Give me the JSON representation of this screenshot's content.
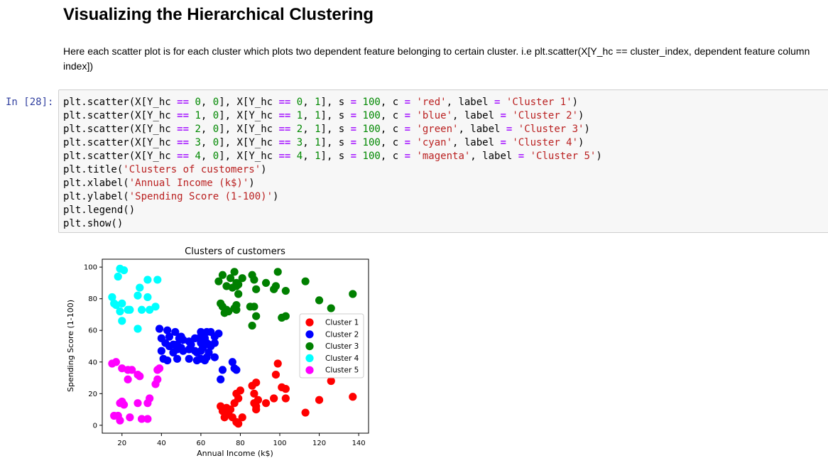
{
  "markdown": {
    "heading": "Visualizing the Hierarchical Clustering",
    "paragraph": "Here each scatter plot is for each cluster which plots two dependent feature belonging to certain cluster. i.e plt.scatter(X[Y_hc == cluster_index, dependent feature column index])"
  },
  "cell": {
    "prompt": "In [28]:",
    "code_lines": [
      [
        [
          "plt.scatter(X[Y_hc ",
          ""
        ],
        [
          "==",
          "op"
        ],
        [
          " ",
          ""
        ],
        [
          "0",
          "num"
        ],
        [
          ", ",
          ""
        ],
        [
          "0",
          "num"
        ],
        [
          "], X[Y_hc ",
          ""
        ],
        [
          "==",
          "op"
        ],
        [
          " ",
          ""
        ],
        [
          "0",
          "num"
        ],
        [
          ", ",
          ""
        ],
        [
          "1",
          "num"
        ],
        [
          "], s ",
          ""
        ],
        [
          "=",
          "op"
        ],
        [
          " ",
          ""
        ],
        [
          "100",
          "num"
        ],
        [
          ", c ",
          ""
        ],
        [
          "=",
          "op"
        ],
        [
          " ",
          ""
        ],
        [
          "'red'",
          "str"
        ],
        [
          ", label ",
          ""
        ],
        [
          "=",
          "op"
        ],
        [
          " ",
          ""
        ],
        [
          "'Cluster 1'",
          "str"
        ],
        [
          ")",
          ""
        ]
      ],
      [
        [
          "plt.scatter(X[Y_hc ",
          ""
        ],
        [
          "==",
          "op"
        ],
        [
          " ",
          ""
        ],
        [
          "1",
          "num"
        ],
        [
          ", ",
          ""
        ],
        [
          "0",
          "num"
        ],
        [
          "], X[Y_hc ",
          ""
        ],
        [
          "==",
          "op"
        ],
        [
          " ",
          ""
        ],
        [
          "1",
          "num"
        ],
        [
          ", ",
          ""
        ],
        [
          "1",
          "num"
        ],
        [
          "], s ",
          ""
        ],
        [
          "=",
          "op"
        ],
        [
          " ",
          ""
        ],
        [
          "100",
          "num"
        ],
        [
          ", c ",
          ""
        ],
        [
          "=",
          "op"
        ],
        [
          " ",
          ""
        ],
        [
          "'blue'",
          "str"
        ],
        [
          ", label ",
          ""
        ],
        [
          "=",
          "op"
        ],
        [
          " ",
          ""
        ],
        [
          "'Cluster 2'",
          "str"
        ],
        [
          ")",
          ""
        ]
      ],
      [
        [
          "plt.scatter(X[Y_hc ",
          ""
        ],
        [
          "==",
          "op"
        ],
        [
          " ",
          ""
        ],
        [
          "2",
          "num"
        ],
        [
          ", ",
          ""
        ],
        [
          "0",
          "num"
        ],
        [
          "], X[Y_hc ",
          ""
        ],
        [
          "==",
          "op"
        ],
        [
          " ",
          ""
        ],
        [
          "2",
          "num"
        ],
        [
          ", ",
          ""
        ],
        [
          "1",
          "num"
        ],
        [
          "], s ",
          ""
        ],
        [
          "=",
          "op"
        ],
        [
          " ",
          ""
        ],
        [
          "100",
          "num"
        ],
        [
          ", c ",
          ""
        ],
        [
          "=",
          "op"
        ],
        [
          " ",
          ""
        ],
        [
          "'green'",
          "str"
        ],
        [
          ", label ",
          ""
        ],
        [
          "=",
          "op"
        ],
        [
          " ",
          ""
        ],
        [
          "'Cluster 3'",
          "str"
        ],
        [
          ")",
          ""
        ]
      ],
      [
        [
          "plt.scatter(X[Y_hc ",
          ""
        ],
        [
          "==",
          "op"
        ],
        [
          " ",
          ""
        ],
        [
          "3",
          "num"
        ],
        [
          ", ",
          ""
        ],
        [
          "0",
          "num"
        ],
        [
          "], X[Y_hc ",
          ""
        ],
        [
          "==",
          "op"
        ],
        [
          " ",
          ""
        ],
        [
          "3",
          "num"
        ],
        [
          ", ",
          ""
        ],
        [
          "1",
          "num"
        ],
        [
          "], s ",
          ""
        ],
        [
          "=",
          "op"
        ],
        [
          " ",
          ""
        ],
        [
          "100",
          "num"
        ],
        [
          ", c ",
          ""
        ],
        [
          "=",
          "op"
        ],
        [
          " ",
          ""
        ],
        [
          "'cyan'",
          "str"
        ],
        [
          ", label ",
          ""
        ],
        [
          "=",
          "op"
        ],
        [
          " ",
          ""
        ],
        [
          "'Cluster 4'",
          "str"
        ],
        [
          ")",
          ""
        ]
      ],
      [
        [
          "plt.scatter(X[Y_hc ",
          ""
        ],
        [
          "==",
          "op"
        ],
        [
          " ",
          ""
        ],
        [
          "4",
          "num"
        ],
        [
          ", ",
          ""
        ],
        [
          "0",
          "num"
        ],
        [
          "], X[Y_hc ",
          ""
        ],
        [
          "==",
          "op"
        ],
        [
          " ",
          ""
        ],
        [
          "4",
          "num"
        ],
        [
          ", ",
          ""
        ],
        [
          "1",
          "num"
        ],
        [
          "], s ",
          ""
        ],
        [
          "=",
          "op"
        ],
        [
          " ",
          ""
        ],
        [
          "100",
          "num"
        ],
        [
          ", c ",
          ""
        ],
        [
          "=",
          "op"
        ],
        [
          " ",
          ""
        ],
        [
          "'magenta'",
          "str"
        ],
        [
          ", label ",
          ""
        ],
        [
          "=",
          "op"
        ],
        [
          " ",
          ""
        ],
        [
          "'Cluster 5'",
          "str"
        ],
        [
          ")",
          ""
        ]
      ],
      [
        [
          "plt.title(",
          ""
        ],
        [
          "'Clusters of customers'",
          "str"
        ],
        [
          ")",
          ""
        ]
      ],
      [
        [
          "plt.xlabel(",
          ""
        ],
        [
          "'Annual Income (k$)'",
          "str"
        ],
        [
          ")",
          ""
        ]
      ],
      [
        [
          "plt.ylabel(",
          ""
        ],
        [
          "'Spending Score (1-100)'",
          "str"
        ],
        [
          ")",
          ""
        ]
      ],
      [
        [
          "plt.legend()",
          ""
        ]
      ],
      [
        [
          "plt.show()",
          ""
        ]
      ]
    ]
  },
  "chart_data": {
    "type": "scatter",
    "title": "Clusters of customers",
    "xlabel": "Annual Income (k$)",
    "ylabel": "Spending Score (1-100)",
    "xlim": [
      10,
      145
    ],
    "ylim": [
      -5,
      105
    ],
    "xticks": [
      20,
      40,
      60,
      80,
      100,
      120,
      140
    ],
    "yticks": [
      0,
      20,
      40,
      60,
      80,
      100
    ],
    "grid": false,
    "legend_position": "center-right",
    "series": [
      {
        "name": "Cluster 1",
        "color": "#ff0000",
        "points": [
          [
            70,
            12
          ],
          [
            71,
            9
          ],
          [
            72,
            5
          ],
          [
            73,
            11
          ],
          [
            74,
            7
          ],
          [
            75,
            10
          ],
          [
            76,
            5
          ],
          [
            77,
            14
          ],
          [
            78,
            2
          ],
          [
            78,
            20
          ],
          [
            79,
            1
          ],
          [
            79,
            17
          ],
          [
            80,
            22
          ],
          [
            81,
            5
          ],
          [
            86,
            25
          ],
          [
            87,
            20
          ],
          [
            87,
            14
          ],
          [
            88,
            12
          ],
          [
            88,
            27
          ],
          [
            88,
            10
          ],
          [
            89,
            16
          ],
          [
            93,
            14
          ],
          [
            97,
            17
          ],
          [
            98,
            32
          ],
          [
            99,
            39
          ],
          [
            101,
            24
          ],
          [
            103,
            23
          ],
          [
            103,
            17
          ],
          [
            113,
            8
          ],
          [
            120,
            16
          ],
          [
            126,
            28
          ],
          [
            137,
            18
          ]
        ]
      },
      {
        "name": "Cluster 2",
        "color": "#0000ff",
        "points": [
          [
            39,
            61
          ],
          [
            40,
            55
          ],
          [
            40,
            47
          ],
          [
            41,
            42
          ],
          [
            42,
            52
          ],
          [
            43,
            60
          ],
          [
            43,
            41
          ],
          [
            44,
            50
          ],
          [
            44,
            56
          ],
          [
            46,
            51
          ],
          [
            46,
            46
          ],
          [
            47,
            59
          ],
          [
            48,
            51
          ],
          [
            48,
            48
          ],
          [
            48,
            42
          ],
          [
            49,
            55
          ],
          [
            50,
            49
          ],
          [
            50,
            56
          ],
          [
            51,
            47
          ],
          [
            51,
            54
          ],
          [
            54,
            53
          ],
          [
            54,
            48
          ],
          [
            54,
            42
          ],
          [
            55,
            51
          ],
          [
            57,
            55
          ],
          [
            57,
            47
          ],
          [
            58,
            46
          ],
          [
            58,
            41
          ],
          [
            59,
            55
          ],
          [
            60,
            52
          ],
          [
            60,
            47
          ],
          [
            60,
            42
          ],
          [
            60,
            59
          ],
          [
            61,
            49
          ],
          [
            62,
            55
          ],
          [
            62,
            41
          ],
          [
            63,
            52
          ],
          [
            63,
            43
          ],
          [
            63,
            59
          ],
          [
            64,
            46
          ],
          [
            64,
            51
          ],
          [
            65,
            50
          ],
          [
            65,
            59
          ],
          [
            67,
            52
          ],
          [
            67,
            43
          ],
          [
            67,
            56
          ],
          [
            69,
            58
          ],
          [
            70,
            29
          ],
          [
            71,
            35
          ],
          [
            76,
            40
          ],
          [
            77,
            36
          ],
          [
            78,
            35
          ]
        ]
      },
      {
        "name": "Cluster 3",
        "color": "#008000",
        "points": [
          [
            69,
            91
          ],
          [
            70,
            77
          ],
          [
            71,
            95
          ],
          [
            71,
            75
          ],
          [
            72,
            71
          ],
          [
            73,
            88
          ],
          [
            73,
            73
          ],
          [
            74,
            72
          ],
          [
            75,
            93
          ],
          [
            76,
            87
          ],
          [
            77,
            97
          ],
          [
            77,
            74
          ],
          [
            78,
            90
          ],
          [
            78,
            88
          ],
          [
            78,
            76
          ],
          [
            78,
            73
          ],
          [
            79,
            89
          ],
          [
            79,
            83
          ],
          [
            81,
            93
          ],
          [
            85,
            75
          ],
          [
            86,
            95
          ],
          [
            86,
            63
          ],
          [
            87,
            92
          ],
          [
            87,
            75
          ],
          [
            88,
            86
          ],
          [
            88,
            69
          ],
          [
            93,
            90
          ],
          [
            97,
            86
          ],
          [
            98,
            88
          ],
          [
            99,
            97
          ],
          [
            101,
            68
          ],
          [
            103,
            85
          ],
          [
            103,
            69
          ],
          [
            113,
            91
          ],
          [
            120,
            79
          ],
          [
            126,
            74
          ],
          [
            137,
            83
          ]
        ]
      },
      {
        "name": "Cluster 4",
        "color": "#00ffff",
        "points": [
          [
            15,
            81
          ],
          [
            16,
            77
          ],
          [
            17,
            76
          ],
          [
            18,
            94
          ],
          [
            19,
            99
          ],
          [
            19,
            72
          ],
          [
            20,
            77
          ],
          [
            20,
            66
          ],
          [
            21,
            98
          ],
          [
            23,
            73
          ],
          [
            24,
            73
          ],
          [
            28,
            61
          ],
          [
            28,
            82
          ],
          [
            29,
            87
          ],
          [
            30,
            73
          ],
          [
            33,
            92
          ],
          [
            33,
            81
          ],
          [
            34,
            73
          ],
          [
            37,
            75
          ],
          [
            38,
            92
          ]
        ]
      },
      {
        "name": "Cluster 5",
        "color": "#ff00ff",
        "points": [
          [
            15,
            39
          ],
          [
            16,
            6
          ],
          [
            17,
            40
          ],
          [
            18,
            6
          ],
          [
            19,
            3
          ],
          [
            19,
            14
          ],
          [
            20,
            15
          ],
          [
            20,
            36
          ],
          [
            21,
            13
          ],
          [
            23,
            35
          ],
          [
            23,
            29
          ],
          [
            24,
            5
          ],
          [
            25,
            35
          ],
          [
            28,
            14
          ],
          [
            28,
            32
          ],
          [
            29,
            31
          ],
          [
            30,
            4
          ],
          [
            33,
            4
          ],
          [
            33,
            14
          ],
          [
            34,
            17
          ],
          [
            37,
            26
          ],
          [
            38,
            35
          ],
          [
            38,
            29
          ],
          [
            39,
            36
          ]
        ]
      }
    ]
  }
}
